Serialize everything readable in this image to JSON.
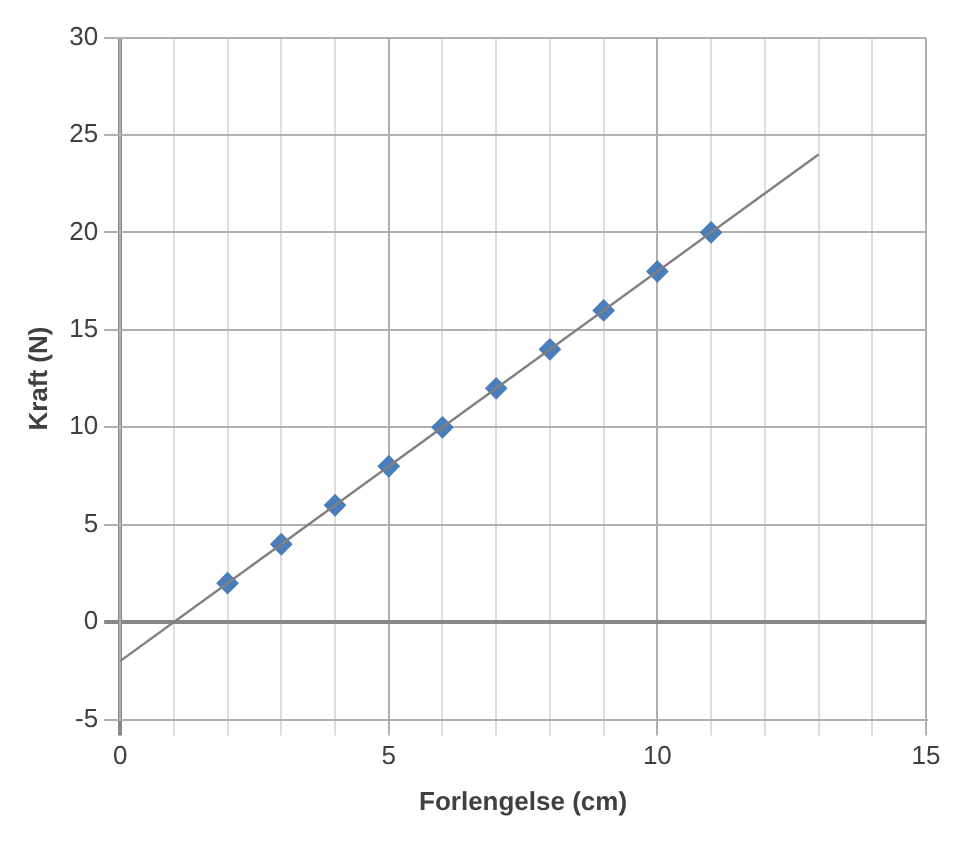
{
  "chart_data": {
    "type": "scatter",
    "xlabel": "Forlengelse (cm)",
    "ylabel": "Kraft (N)",
    "xlim": [
      0,
      15
    ],
    "ylim": [
      -5,
      30
    ],
    "xticks": [
      0,
      {
        "value": 1,
        "label": null
      },
      {
        "value": 2,
        "label": null
      },
      {
        "value": 3,
        "label": null
      },
      {
        "value": 4,
        "label": null
      },
      5,
      {
        "value": 6,
        "label": null
      },
      {
        "value": 7,
        "label": null
      },
      {
        "value": 8,
        "label": null
      },
      {
        "value": 9,
        "label": null
      },
      10,
      {
        "value": 11,
        "label": null
      },
      {
        "value": 12,
        "label": null
      },
      {
        "value": 13,
        "label": null
      },
      {
        "value": 14,
        "label": null
      },
      15
    ],
    "yticks": [
      -5,
      0,
      5,
      10,
      15,
      20,
      25,
      30
    ],
    "grid": true,
    "legend": false,
    "series": [
      {
        "type": "scatter",
        "color": "#4a7ebb",
        "marker": "diamond",
        "x": [
          2,
          3,
          4,
          5,
          6,
          7,
          8,
          9,
          10,
          11
        ],
        "values": [
          2,
          4,
          6,
          8,
          10,
          12,
          14,
          16,
          18,
          20
        ]
      },
      {
        "type": "line",
        "color": "#808080",
        "marker": "none",
        "line_style": "solid",
        "x": [
          0,
          13
        ],
        "values": [
          -2,
          24
        ]
      }
    ]
  }
}
